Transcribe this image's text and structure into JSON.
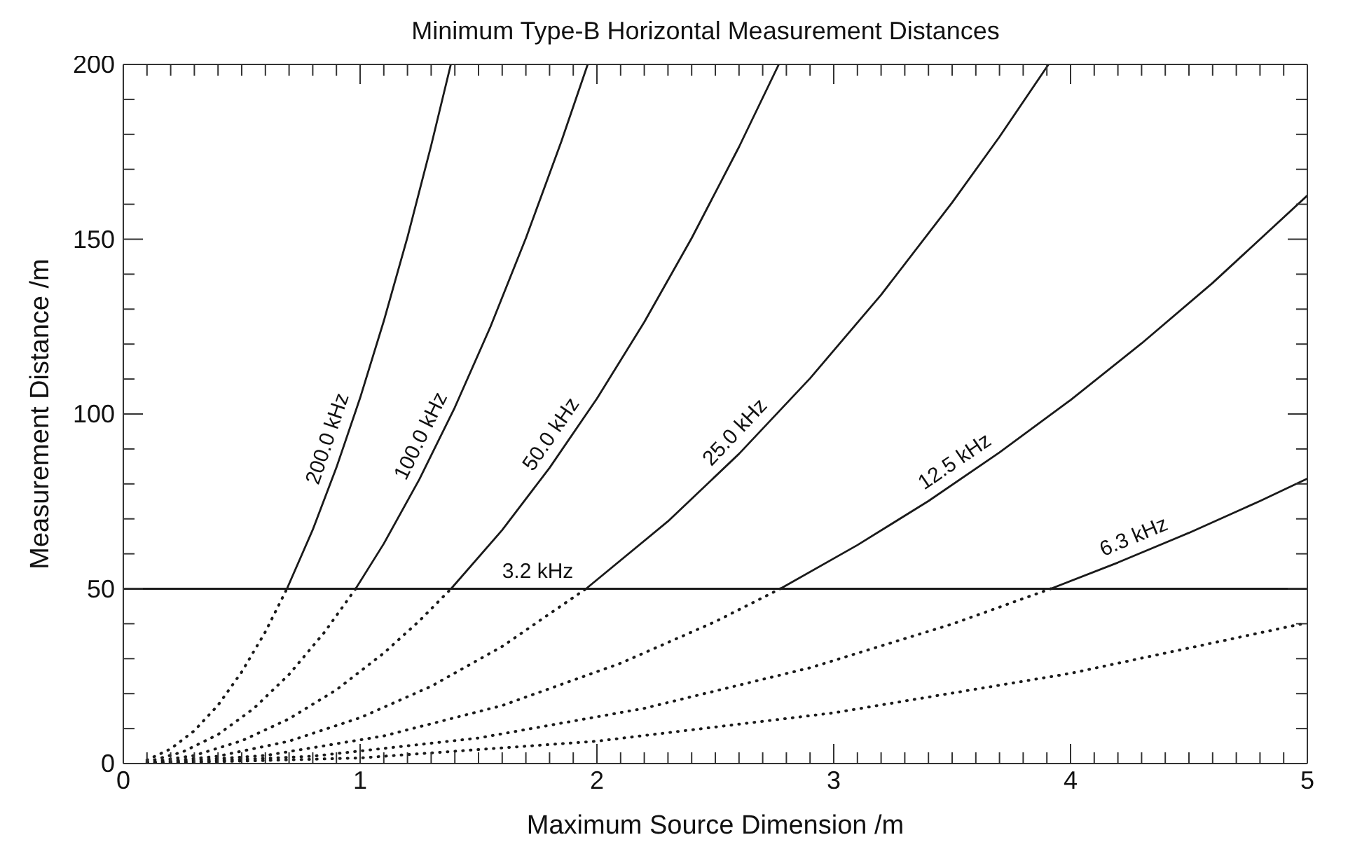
{
  "chart_data": {
    "type": "line",
    "title": "Minimum Type-B Horizontal Measurement Distances",
    "xlabel": "Maximum Source Dimension /m",
    "ylabel": "Measurement Distance /m",
    "xlim": [
      0,
      5
    ],
    "ylim": [
      0,
      200
    ],
    "xticks": [
      0,
      {
        "value": 0.1,
        "label": null
      },
      {
        "value": 0.2,
        "label": null
      },
      {
        "value": 0.3,
        "label": null
      },
      {
        "value": 0.4,
        "label": null
      },
      {
        "value": 0.5,
        "label": null
      },
      {
        "value": 0.6,
        "label": null
      },
      {
        "value": 0.7,
        "label": null
      },
      {
        "value": 0.8,
        "label": null
      },
      {
        "value": 0.9,
        "label": null
      },
      1,
      {
        "value": 1.1,
        "label": null
      },
      {
        "value": 1.2,
        "label": null
      },
      {
        "value": 1.3,
        "label": null
      },
      {
        "value": 1.4,
        "label": null
      },
      {
        "value": 1.5,
        "label": null
      },
      {
        "value": 1.6,
        "label": null
      },
      {
        "value": 1.7,
        "label": null
      },
      {
        "value": 1.8,
        "label": null
      },
      {
        "value": 1.9,
        "label": null
      },
      2,
      {
        "value": 2.1,
        "label": null
      },
      {
        "value": 2.2,
        "label": null
      },
      {
        "value": 2.3,
        "label": null
      },
      {
        "value": 2.4,
        "label": null
      },
      {
        "value": 2.5,
        "label": null
      },
      {
        "value": 2.6,
        "label": null
      },
      {
        "value": 2.7,
        "label": null
      },
      {
        "value": 2.8,
        "label": null
      },
      {
        "value": 2.9,
        "label": null
      },
      3,
      {
        "value": 3.1,
        "label": null
      },
      {
        "value": 3.2,
        "label": null
      },
      {
        "value": 3.3,
        "label": null
      },
      {
        "value": 3.4,
        "label": null
      },
      {
        "value": 3.5,
        "label": null
      },
      {
        "value": 3.6,
        "label": null
      },
      {
        "value": 3.7,
        "label": null
      },
      {
        "value": 3.8,
        "label": null
      },
      {
        "value": 3.9,
        "label": null
      },
      4,
      {
        "value": 4.1,
        "label": null
      },
      {
        "value": 4.2,
        "label": null
      },
      {
        "value": 4.3,
        "label": null
      },
      {
        "value": 4.4,
        "label": null
      },
      {
        "value": 4.5,
        "label": null
      },
      {
        "value": 4.6,
        "label": null
      },
      {
        "value": 4.7,
        "label": null
      },
      {
        "value": 4.8,
        "label": null
      },
      {
        "value": 4.9,
        "label": null
      },
      5
    ],
    "yticks": [
      0,
      {
        "value": 10,
        "label": null
      },
      {
        "value": 20,
        "label": null
      },
      {
        "value": 30,
        "label": null
      },
      {
        "value": 40,
        "label": null
      },
      50,
      {
        "value": 60,
        "label": null
      },
      {
        "value": 70,
        "label": null
      },
      {
        "value": 80,
        "label": null
      },
      {
        "value": 90,
        "label": null
      },
      100,
      {
        "value": 110,
        "label": null
      },
      {
        "value": 120,
        "label": null
      },
      {
        "value": 130,
        "label": null
      },
      {
        "value": 140,
        "label": null
      },
      150,
      {
        "value": 160,
        "label": null
      },
      {
        "value": 170,
        "label": null
      },
      {
        "value": 180,
        "label": null
      },
      {
        "value": 190,
        "label": null
      },
      200
    ],
    "series": [
      {
        "line_style": "dotted",
        "color": "#1a1a1a",
        "x": [
          0.1,
          0.2,
          0.3,
          0.4,
          0.5,
          0.6,
          0.691
        ],
        "values": [
          1.0,
          4.2,
          9.4,
          16.7,
          26.2,
          37.7,
          50
        ]
      },
      {
        "name": "200.0 kHz",
        "line_style": "solid",
        "color": "#1a1a1a",
        "x": [
          0.691,
          0.8,
          0.9,
          1.0,
          1.1,
          1.2,
          1.3,
          1.383
        ],
        "values": [
          50,
          66.9,
          84.7,
          104.6,
          126.6,
          150.6,
          176.8,
          200
        ]
      },
      {
        "line_style": "dotted",
        "color": "#1a1a1a",
        "x": [
          0.1,
          0.25,
          0.4,
          0.55,
          0.7,
          0.85,
          0.981
        ],
        "values": [
          0.5,
          3.3,
          8.3,
          15.7,
          25.5,
          37.6,
          50
        ]
      },
      {
        "name": "100.0 kHz",
        "line_style": "solid",
        "color": "#1a1a1a",
        "x": [
          0.981,
          1.1,
          1.25,
          1.4,
          1.55,
          1.7,
          1.85,
          1.961
        ],
        "values": [
          50,
          62.9,
          81.3,
          101.9,
          124.9,
          150.3,
          178,
          200
        ]
      },
      {
        "line_style": "dotted",
        "color": "#1a1a1a",
        "x": [
          0.1,
          0.3,
          0.5,
          0.7,
          0.9,
          1.1,
          1.25,
          1.384
        ],
        "values": [
          0.3,
          2.3,
          6.5,
          12.8,
          21.1,
          31.6,
          40.8,
          50
        ]
      },
      {
        "name": "50.0 kHz",
        "line_style": "solid",
        "color": "#1a1a1a",
        "x": [
          1.384,
          1.6,
          1.8,
          2.0,
          2.2,
          2.4,
          2.6,
          2.768
        ],
        "values": [
          50,
          66.8,
          84.6,
          104.4,
          126.3,
          150.3,
          176.4,
          200
        ]
      },
      {
        "line_style": "dotted",
        "color": "#1a1a1a",
        "x": [
          0.1,
          0.4,
          0.7,
          1.0,
          1.3,
          1.6,
          1.954
        ],
        "values": [
          0.1,
          2.1,
          6.4,
          13.1,
          22.1,
          33.5,
          50
        ]
      },
      {
        "name": "25.0 kHz",
        "line_style": "solid",
        "color": "#1a1a1a",
        "x": [
          1.954,
          2.3,
          2.6,
          2.9,
          3.2,
          3.5,
          3.7,
          3.907
        ],
        "values": [
          50,
          69.3,
          88.6,
          110.2,
          134.1,
          160.5,
          179.3,
          200
        ]
      },
      {
        "line_style": "dotted",
        "color": "#1a1a1a",
        "x": [
          0.1,
          0.6,
          1.1,
          1.6,
          2.1,
          2.5,
          2.774
        ],
        "values": [
          0.1,
          2.3,
          7.9,
          16.6,
          28.7,
          40.6,
          50
        ]
      },
      {
        "name": "12.5 kHz",
        "line_style": "solid",
        "color": "#1a1a1a",
        "x": [
          2.774,
          3.1,
          3.4,
          3.7,
          4.0,
          4.3,
          4.6,
          5
        ],
        "values": [
          50,
          62.5,
          75.1,
          89,
          104,
          120.2,
          137.5,
          162.5
        ]
      },
      {
        "line_style": "dotted",
        "color": "#1a1a1a",
        "x": [
          0.1,
          0.8,
          1.5,
          2.2,
          2.9,
          3.5,
          3.916
        ],
        "values": [
          0,
          2.1,
          7.3,
          15.8,
          27.4,
          39.9,
          50
        ]
      },
      {
        "name": "6.3 kHz",
        "line_style": "solid",
        "color": "#1a1a1a",
        "x": [
          3.916,
          4.2,
          4.5,
          4.8,
          5
        ],
        "values": [
          50,
          57.5,
          66,
          75.1,
          81.5
        ]
      },
      {
        "line_style": "dotted",
        "color": "#1a1a1a",
        "x": [
          0.1,
          1.0,
          2.0,
          3.0,
          4.0,
          5.0
        ],
        "values": [
          0,
          1.6,
          6.4,
          14.5,
          25.8,
          40.3
        ]
      },
      {
        "name": "3.2 kHz",
        "line_style": "solid",
        "color": "#1a1a1a",
        "x": [
          0,
          5
        ],
        "values": [
          50,
          50
        ]
      }
    ]
  }
}
